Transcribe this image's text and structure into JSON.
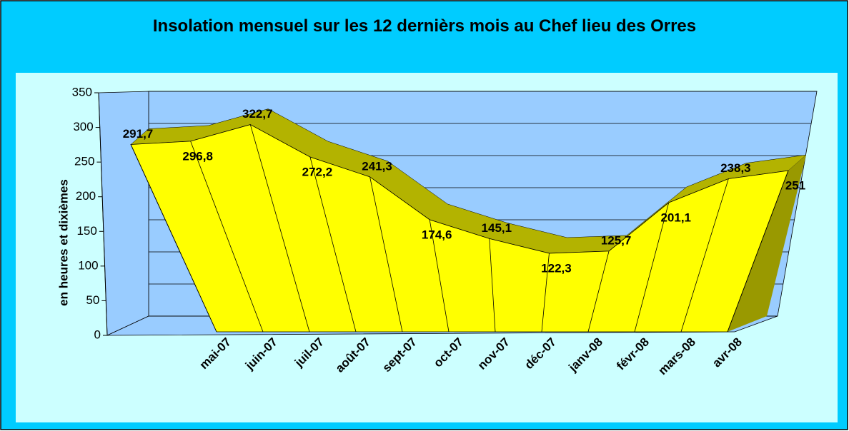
{
  "chart_data": {
    "type": "area3d",
    "title": "Insolation mensuel sur les 12 dernièrs mois au Chef lieu des Orres",
    "y_axis_label": "en heures et dixièmes",
    "categories": [
      "mai-07",
      "juin-07",
      "juil-07",
      "août-07",
      "sept-07",
      "oct-07",
      "nov-07",
      "déc-07",
      "janv-08",
      "févr-08",
      "mars-08",
      "avr-08"
    ],
    "values": [
      291.7,
      296.8,
      322.7,
      272.2,
      241.3,
      174.6,
      145.1,
      122.3,
      125.7,
      201.1,
      238.3,
      251
    ],
    "value_labels": [
      "291,7",
      "296,8",
      "322,7",
      "272,2",
      "241,3",
      "174,6",
      "145,1",
      "122,3",
      "125,7",
      "201,1",
      "238,3",
      "251"
    ],
    "color": "#ffff00",
    "ylim": [
      0,
      350
    ],
    "yticks": [
      0,
      50,
      100,
      150,
      200,
      250,
      300,
      350
    ],
    "grid": true
  }
}
